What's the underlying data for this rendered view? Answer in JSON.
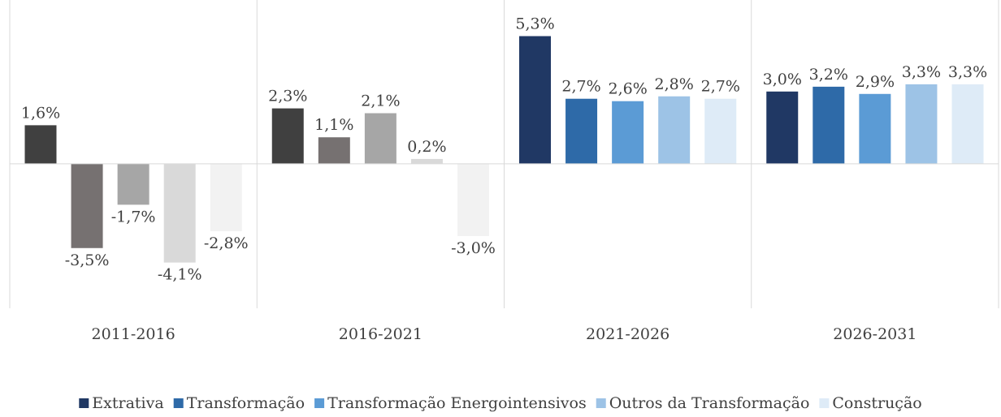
{
  "chart_data": {
    "type": "bar",
    "categories": [
      "2011-2016",
      "2016-2021",
      "2021-2026",
      "2026-2031"
    ],
    "ylim": [
      -6,
      6.8
    ],
    "legend": "bottom",
    "series": [
      {
        "name": "Extrativa",
        "color": "#203864",
        "colors": [
          "#404040",
          "#404040",
          "#203864",
          "#203864"
        ],
        "values": [
          1.6,
          2.3,
          5.3,
          3.0
        ],
        "value_labels": [
          "1,6%",
          "2,3%",
          "5,3%",
          "3,0%"
        ]
      },
      {
        "name": "Transformação",
        "color": "#2e6aa8",
        "colors": [
          "#767171",
          "#767171",
          "#2e6aa8",
          "#2e6aa8"
        ],
        "values": [
          -3.5,
          1.1,
          2.7,
          3.2
        ],
        "value_labels": [
          "-3,5%",
          "1,1%",
          "2,7%",
          "3,2%"
        ]
      },
      {
        "name": "Transformação Energointensivos",
        "color": "#5b9bd5",
        "colors": [
          "#a6a6a6",
          "#a6a6a6",
          "#5b9bd5",
          "#5b9bd5"
        ],
        "values": [
          -1.7,
          2.1,
          2.6,
          2.9
        ],
        "value_labels": [
          "-1,7%",
          "2,1%",
          "2,6%",
          "2,9%"
        ]
      },
      {
        "name": "Outros da Transformação",
        "color": "#9dc3e6",
        "colors": [
          "#d9d9d9",
          "#d9d9d9",
          "#9dc3e6",
          "#9dc3e6"
        ],
        "values": [
          -4.1,
          0.2,
          2.8,
          3.3
        ],
        "value_labels": [
          "-4,1%",
          "0,2%",
          "2,8%",
          "3,3%"
        ]
      },
      {
        "name": "Construção",
        "color": "#deebf7",
        "colors": [
          "#f2f2f2",
          "#f2f2f2",
          "#deebf7",
          "#deebf7"
        ],
        "values": [
          -2.8,
          -3.0,
          2.7,
          3.3
        ],
        "value_labels": [
          "-2,8%",
          "-3,0%",
          "2,7%",
          "3,3%"
        ]
      }
    ]
  }
}
